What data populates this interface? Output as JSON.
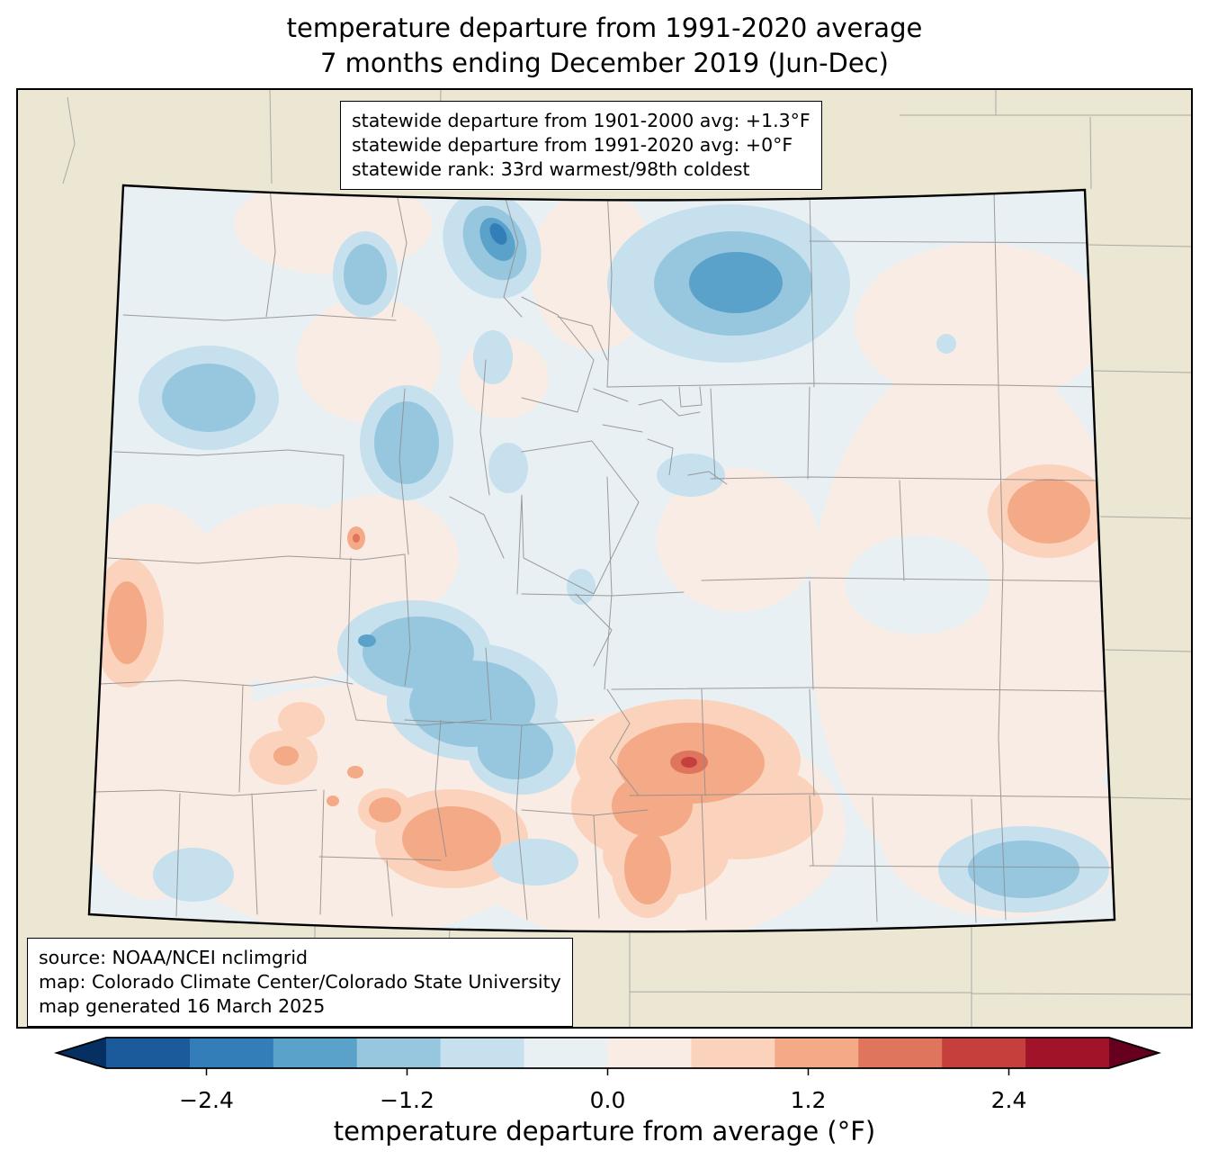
{
  "title": {
    "line1": "temperature departure from 1991-2020 average",
    "line2": "7 months ending December 2019 (Jun-Dec)"
  },
  "stats_box": {
    "lines": [
      "statewide departure from 1901-2000 avg: +1.3°F",
      "statewide departure from 1991-2020 avg: +0°F",
      "statewide rank: 33rd warmest/98th coldest"
    ]
  },
  "source_box": {
    "lines": [
      "source: NOAA/NCEI nclimgrid",
      "map: Colorado Climate Center/Colorado State University",
      "map generated 16 March 2025"
    ]
  },
  "colorbar": {
    "label": "temperature departure from average (°F)",
    "range": [
      -3,
      3
    ],
    "segments": [
      "#1b5a9b",
      "#337eb8",
      "#5ba2cb",
      "#97c7df",
      "#c7e0ed",
      "#e8f0f4",
      "#f9ece4",
      "#fbd2bc",
      "#f4a987",
      "#df755d",
      "#c53f3d",
      "#a01328"
    ],
    "arrow_left": "#053061",
    "arrow_right": "#67001f",
    "ticks": [
      {
        "value": -2.4,
        "label": "−2.4"
      },
      {
        "value": -1.2,
        "label": "−1.2"
      },
      {
        "value": 0.0,
        "label": "0.0"
      },
      {
        "value": 1.2,
        "label": "1.2"
      },
      {
        "value": 2.4,
        "label": "2.4"
      }
    ]
  },
  "palette": {
    "outside_state": "#ebe7d2",
    "base_near_zero_cool": "#e8f0f4",
    "warm_0_05": "#f9ece4",
    "warm_05_10": "#fbd2bc",
    "warm_10_15": "#f4a987",
    "warm_15_20": "#df755d",
    "warm_20_25": "#c53f3d",
    "cool_05_10": "#c7e0ed",
    "cool_10_15": "#97c7df",
    "cool_15_20": "#5ba2cb",
    "cool_20_25": "#337eb8",
    "county_line": "#8c8c8c",
    "neighbor_line": "#9a9a9a",
    "state_border": "#000000"
  }
}
